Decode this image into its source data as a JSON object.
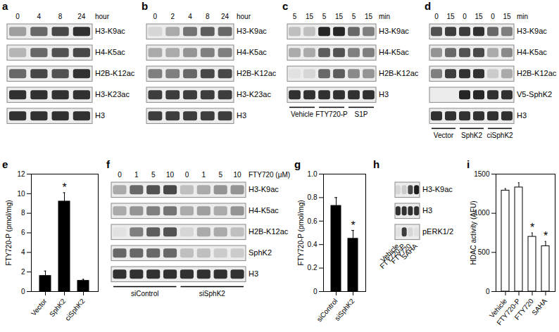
{
  "chart_data": [
    {
      "type": "bar",
      "panel": "e",
      "y_label": "FTY720-P (pmol/mg)",
      "categories": [
        "Vector",
        "SphK2",
        "ciSphK2"
      ],
      "values": [
        1.6,
        9.2,
        1.1
      ],
      "errors": [
        0.5,
        0.9,
        0.15
      ],
      "color": "#000000",
      "ylim": [
        0,
        12
      ],
      "yticks": [
        0,
        2,
        4,
        6,
        8,
        10,
        12
      ],
      "annotations": [
        {
          "category": "SphK2",
          "text": "*"
        }
      ]
    },
    {
      "type": "bar",
      "panel": "g",
      "y_label": "FTY720-P (pmol/mg)",
      "categories": [
        "siControl",
        "siSphK2"
      ],
      "values": [
        0.73,
        0.45
      ],
      "errors": [
        0.07,
        0.07
      ],
      "color": "#000000",
      "ylim": [
        0,
        1
      ],
      "yticks": [
        0,
        0.2,
        0.4,
        0.6,
        0.8,
        {
          "value": 1,
          "label": "1.0"
        }
      ],
      "annotations": [
        {
          "category": "siSphK2",
          "text": "*"
        }
      ]
    },
    {
      "type": "bar",
      "panel": "i",
      "y_label": "HDAC activity (AFU)",
      "categories": [
        "Vehicle",
        "FTY720-P",
        "FTY720",
        "SAHA"
      ],
      "values": [
        1290,
        1330,
        700,
        580
      ],
      "errors": [
        25,
        60,
        50,
        60
      ],
      "color": "#ffffff",
      "ylim": [
        0,
        1500
      ],
      "yticks": [
        0,
        500,
        1000,
        1500
      ],
      "annotations": [
        {
          "category": "FTY720",
          "text": "*"
        },
        {
          "category": "SAHA",
          "text": "*"
        }
      ]
    }
  ],
  "blots": [
    {
      "panel": "a",
      "lanes": [
        "0",
        "4",
        "8",
        "24"
      ],
      "unit": "hour",
      "groups": [],
      "rows": [
        {
          "label": "H3-K9ac",
          "intensity": [
            0.35,
            0.6,
            0.75,
            0.85
          ]
        },
        {
          "label": "H4-K5ac",
          "intensity": [
            0.25,
            0.6,
            0.7,
            0.75
          ]
        },
        {
          "label": "H2B-K12ac",
          "intensity": [
            0.6,
            0.75,
            0.7,
            0.85
          ]
        },
        {
          "label": "H3-K23ac",
          "intensity": [
            0.85,
            0.85,
            0.85,
            0.85
          ]
        },
        {
          "label": "H3",
          "intensity": [
            0.85,
            0.85,
            0.85,
            0.85
          ]
        }
      ]
    },
    {
      "panel": "b",
      "lanes": [
        "0",
        "2",
        "4",
        "8",
        "24"
      ],
      "unit": "hour",
      "groups": [],
      "rows": [
        {
          "label": "H3-K9ac",
          "intensity": [
            0.1,
            0.3,
            0.55,
            0.65,
            0.6
          ]
        },
        {
          "label": "H4-K5ac",
          "intensity": [
            0.3,
            0.3,
            0.4,
            0.5,
            0.5
          ]
        },
        {
          "label": "H2B-K12ac",
          "intensity": [
            0.5,
            0.5,
            0.6,
            0.75,
            0.75
          ]
        },
        {
          "label": "H3-K23ac",
          "intensity": [
            0.8,
            0.8,
            0.8,
            0.8,
            0.8
          ]
        },
        {
          "label": "H3",
          "intensity": [
            0.8,
            0.8,
            0.8,
            0.8,
            0.8
          ]
        }
      ]
    },
    {
      "panel": "c",
      "lanes": [
        "5",
        "15",
        "5",
        "15",
        "5",
        "15"
      ],
      "unit": "min",
      "groups": [
        {
          "label": "Vehicle",
          "span": 2
        },
        {
          "label": "FTY720-P",
          "span": 2
        },
        {
          "label": "S1P",
          "span": 2
        }
      ],
      "rows": [
        {
          "label": "H3-K9ac",
          "intensity": [
            0.2,
            0.2,
            0.9,
            0.9,
            0.6,
            0.5
          ]
        },
        {
          "label": "H4-K5ac",
          "intensity": [
            0.3,
            0.3,
            0.65,
            0.7,
            0.5,
            0.5
          ]
        },
        {
          "label": "H2B-K12ac",
          "intensity": [
            0.05,
            0.1,
            0.6,
            0.65,
            0.45,
            0.4
          ]
        },
        {
          "label": "H3",
          "intensity": [
            0.85,
            0.85,
            0.85,
            0.85,
            0.85,
            0.85
          ]
        }
      ]
    },
    {
      "panel": "d",
      "lanes": [
        "0",
        "15",
        "0",
        "15",
        "0",
        "15"
      ],
      "unit": "min",
      "groups": [
        {
          "label": "Vector",
          "span": 2
        },
        {
          "label": "SphK2",
          "span": 2
        },
        {
          "label": "ciSphK2",
          "span": 2
        }
      ],
      "rows": [
        {
          "label": "H3-K9ac",
          "intensity": [
            0.7,
            0.8,
            0.8,
            0.85,
            0.6,
            0.5
          ]
        },
        {
          "label": "H4-K5ac",
          "intensity": [
            0.4,
            0.6,
            0.7,
            0.75,
            0.3,
            0.45
          ]
        },
        {
          "label": "H2B-K12ac",
          "intensity": [
            0.5,
            0.8,
            0.85,
            0.85,
            0.15,
            0.3
          ]
        },
        {
          "label": "V5-SphK2",
          "intensity": [
            0,
            0,
            0.9,
            0.9,
            0.85,
            0.85
          ]
        },
        {
          "label": "H3",
          "intensity": [
            0.85,
            0.85,
            0.85,
            0.85,
            0.85,
            0.85
          ]
        }
      ]
    },
    {
      "panel": "f",
      "lanes": [
        "0",
        "1",
        "5",
        "10",
        "0",
        "1",
        "5",
        "10"
      ],
      "unit": "FTY720 (μM)",
      "groups": [
        {
          "label": "siControl",
          "span": 4
        },
        {
          "label": "siSphK2",
          "span": 4
        }
      ],
      "rows": [
        {
          "label": "H3-K9ac",
          "intensity": [
            0.3,
            0.6,
            0.7,
            0.75,
            0.2,
            0.3,
            0.4,
            0.4
          ]
        },
        {
          "label": "H4-K5ac",
          "intensity": [
            0.3,
            0.4,
            0.5,
            0.55,
            0.3,
            0.35,
            0.3,
            0.4
          ]
        },
        {
          "label": "H2B-K12ac",
          "intensity": [
            0.05,
            0.5,
            0.65,
            0.7,
            0.1,
            0.3,
            0.3,
            0.2
          ]
        },
        {
          "label": "SphK2",
          "intensity": [
            0.6,
            0.6,
            0.6,
            0.6,
            0.2,
            0.2,
            0.15,
            0.15
          ]
        },
        {
          "label": "H3",
          "intensity": [
            0.85,
            0.85,
            0.85,
            0.85,
            0.85,
            0.85,
            0.85,
            0.85
          ]
        }
      ]
    },
    {
      "panel": "h",
      "lanes": [
        "Vehicle",
        "FTY720-P",
        "FTY720",
        "SAHA"
      ],
      "lane_labels_below": true,
      "groups": [],
      "rows": [
        {
          "label": "H3-K9ac",
          "intensity": [
            0.1,
            0.15,
            0.75,
            0.95
          ]
        },
        {
          "label": "H3",
          "intensity": [
            0.85,
            0.85,
            0.85,
            0.85
          ]
        },
        {
          "label": "pERK1/2",
          "intensity": [
            0.05,
            0.8,
            0.1,
            0.05
          ]
        }
      ]
    }
  ]
}
